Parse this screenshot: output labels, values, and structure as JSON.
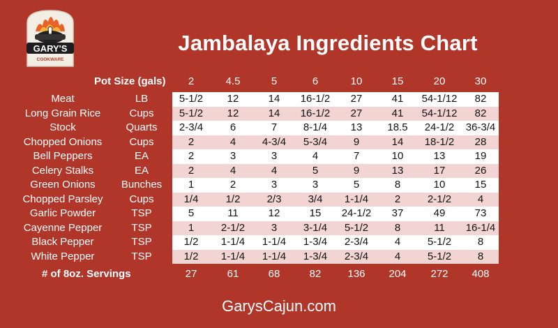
{
  "title": "Jambalaya Ingredients Chart",
  "logo": {
    "brand": "GARY'S",
    "sub": "COOKWARE"
  },
  "header": {
    "pot_label": "Pot Size (gals)",
    "sizes": [
      "2",
      "4.5",
      "5",
      "6",
      "10",
      "15",
      "20",
      "30"
    ]
  },
  "rows": [
    {
      "name": "Meat",
      "unit": "LB",
      "values": [
        "5-1/2",
        "12",
        "14",
        "16-1/2",
        "27",
        "41",
        "54-1/12",
        "82"
      ]
    },
    {
      "name": "Long Grain Rice",
      "unit": "Cups",
      "values": [
        "5-1/2",
        "12",
        "14",
        "16-1/2",
        "27",
        "41",
        "54-1/12",
        "82"
      ]
    },
    {
      "name": "Stock",
      "unit": "Quarts",
      "values": [
        "2-3/4",
        "6",
        "7",
        "8-1/4",
        "13",
        "18.5",
        "24-1/2",
        "36-3/4"
      ]
    },
    {
      "name": "Chopped Onions",
      "unit": "Cups",
      "values": [
        "2",
        "4",
        "4-3/4",
        "5-3/4",
        "9",
        "14",
        "18-1/2",
        "28"
      ]
    },
    {
      "name": "Bell Peppers",
      "unit": "EA",
      "values": [
        "2",
        "3",
        "3",
        "4",
        "7",
        "10",
        "13",
        "19"
      ]
    },
    {
      "name": "Celery Stalks",
      "unit": "EA",
      "values": [
        "2",
        "4",
        "4",
        "5",
        "9",
        "13",
        "17",
        "26"
      ]
    },
    {
      "name": "Green Onions",
      "unit": "Bunches",
      "values": [
        "1",
        "2",
        "3",
        "3",
        "5",
        "8",
        "10",
        "15"
      ]
    },
    {
      "name": "Chopped Parsley",
      "unit": "Cups",
      "values": [
        "1/4",
        "1/2",
        "2/3",
        "3/4",
        "1-1/4",
        "2",
        "2-1/2",
        "4"
      ]
    },
    {
      "name": "Garlic Powder",
      "unit": "TSP",
      "values": [
        "5",
        "11",
        "12",
        "15",
        "24-1/2",
        "37",
        "49",
        "73"
      ]
    },
    {
      "name": "Cayenne Pepper",
      "unit": "TSP",
      "values": [
        "1",
        "2-1/2",
        "3",
        "3-1/4",
        "5-1/2",
        "8",
        "11",
        "16-1/4"
      ]
    },
    {
      "name": "Black Pepper",
      "unit": "TSP",
      "values": [
        "1/2",
        "1-1/4",
        "1-1/4",
        "1-3/4",
        "2-3/4",
        "4",
        "5-1/2",
        "8"
      ]
    },
    {
      "name": "White Pepper",
      "unit": "TSP",
      "values": [
        "1/2",
        "1-1/4",
        "1-1/4",
        "1-3/4",
        "2-3/4",
        "4",
        "5-1/2",
        "8"
      ]
    }
  ],
  "servings": {
    "label": "# of 8oz. Servings",
    "values": [
      "27",
      "61",
      "68",
      "82",
      "136",
      "204",
      "272",
      "408"
    ]
  },
  "footer": "GarysCajun.com",
  "colors": {
    "background": "#b0362a",
    "row_light": "#ffffff",
    "row_pink": "#f2d5d2"
  }
}
